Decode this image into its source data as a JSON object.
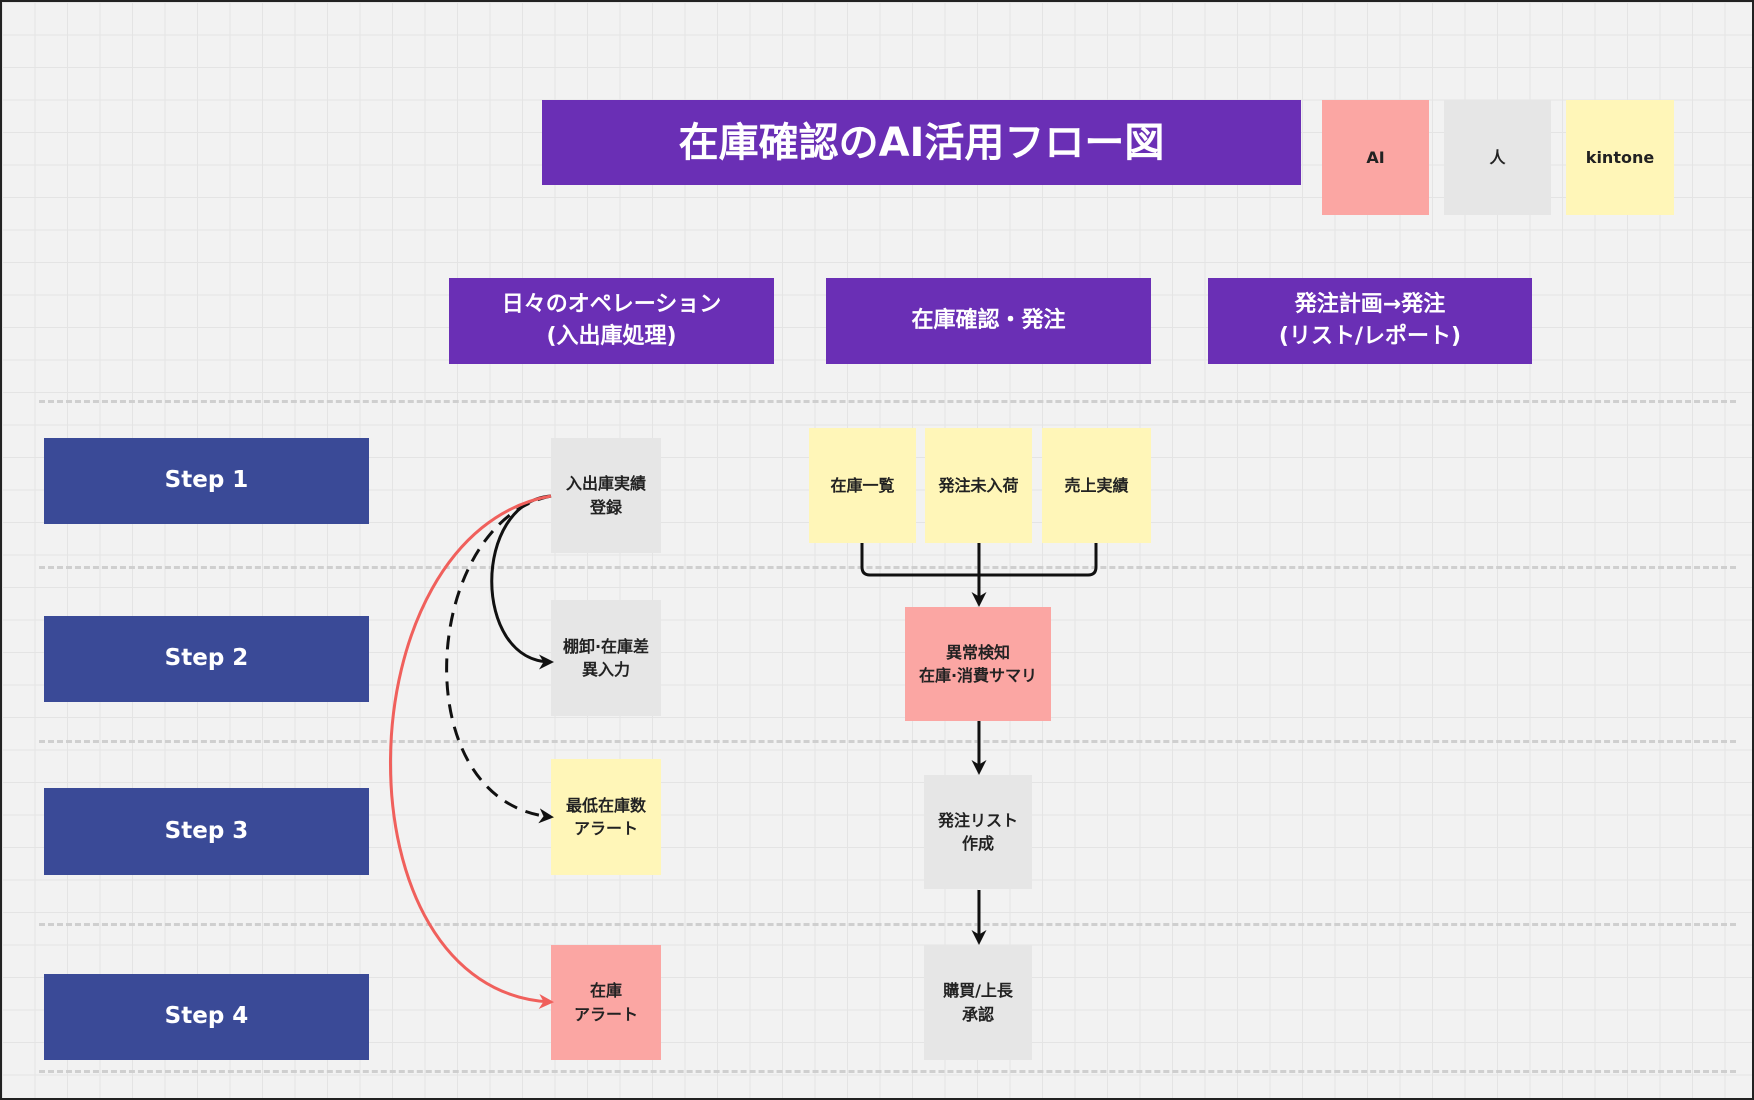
{
  "title": "在庫確認のAI活用フロー図",
  "legend": [
    {
      "label": "AI",
      "color": "#fba6a3"
    },
    {
      "label": "人",
      "color": "#e6e6e6"
    },
    {
      "label": "kintone",
      "color": "#fff6b8"
    }
  ],
  "columns": [
    "日々のオペレーション\n(入出庫処理)",
    "在庫確認・発注",
    "発注計画→発注\n(リスト/レポート)"
  ],
  "steps": [
    "Step 1",
    "Step 2",
    "Step 3",
    "Step 4"
  ],
  "nodes": {
    "inout": "入出庫実績\n登録",
    "stocktake": "棚卸·在庫差\n異入力",
    "min_alert": "最低在庫数\nアラート",
    "stock_alert": "在庫\nアラート",
    "stock_list": "在庫一覧",
    "pending": "発注未入荷",
    "sales": "売上実績",
    "anomaly": "異常検知\n在庫·消費サマリ",
    "order_list": "発注リスト\n作成",
    "approval": "購買/上長\n承認"
  },
  "colors": {
    "header": "#6a2fb5",
    "step": "#3a4a97",
    "ai": "#fba6a3",
    "human": "#e6e6e6",
    "kintone": "#fff6b8",
    "ai_arrow": "#f0605c"
  }
}
